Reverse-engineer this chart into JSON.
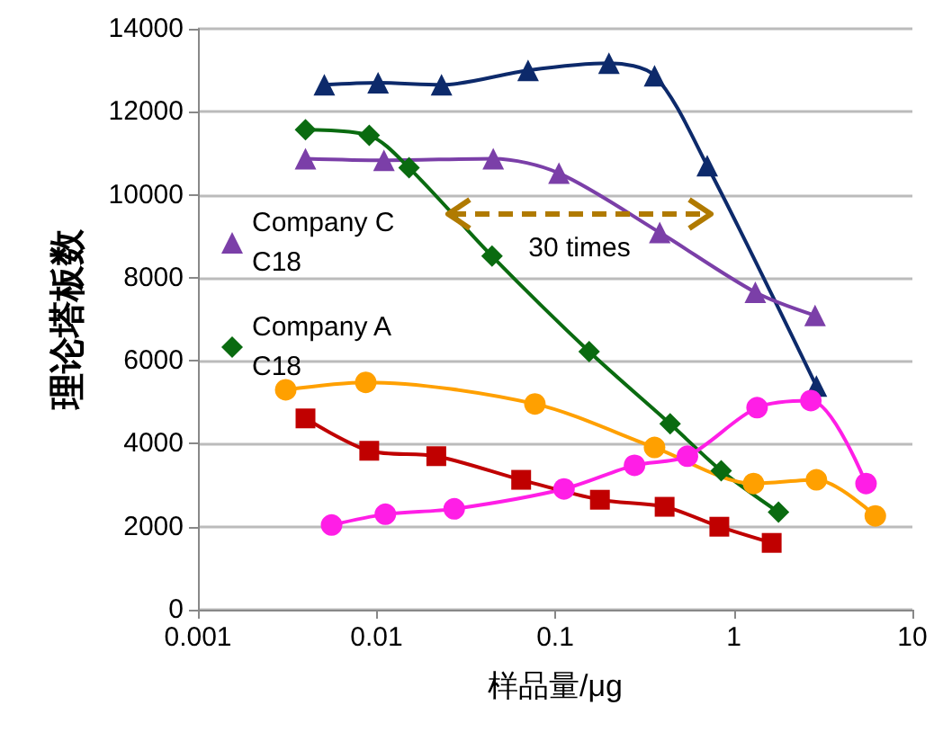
{
  "chart_data": {
    "type": "line",
    "xlabel": "样品量/μg",
    "ylabel": "理论塔板数",
    "log": "x",
    "xlim": [
      0.001,
      10
    ],
    "xticks": [
      0.001,
      0.01,
      0.1,
      1,
      10
    ],
    "ylim": [
      0,
      14000
    ],
    "yticks": [
      0,
      2000,
      4000,
      6000,
      8000,
      10000,
      12000,
      14000
    ],
    "grid": "y",
    "legend": "left",
    "line_style": "solid",
    "series": [
      {
        "color": "#0d2a6b",
        "marker": "triangle",
        "x": [
          0.0051,
          0.0102,
          0.0231,
          0.0705,
          0.2,
          0.36,
          0.71,
          2.9
        ],
        "values": [
          12650,
          12700,
          12650,
          13000,
          13170,
          12870,
          10700,
          5390
        ]
      },
      {
        "name": "Company C C18",
        "color": "#7b3fa8",
        "marker": "triangle",
        "x": [
          0.004,
          0.011,
          0.045,
          0.105,
          0.385,
          1.32,
          2.85
        ],
        "values": [
          10870,
          10830,
          10870,
          10520,
          9090,
          7650,
          7090
        ]
      },
      {
        "name": "Company A C18",
        "color": "#0a6b10",
        "marker": "diamond",
        "x": [
          0.004,
          0.0091,
          0.0152,
          0.0443,
          0.155,
          0.44,
          0.85,
          1.78
        ],
        "values": [
          11570,
          11430,
          10650,
          8520,
          6220,
          4480,
          3350,
          2350
        ]
      },
      {
        "color": "#ffa000",
        "marker": "circle",
        "x": [
          0.0031,
          0.0087,
          0.077,
          0.36,
          1.29,
          2.9,
          6.2
        ],
        "values": [
          5300,
          5480,
          4960,
          3910,
          3040,
          3130,
          2260
        ]
      },
      {
        "color": "#ff1ee6",
        "marker": "circle",
        "x": [
          0.0056,
          0.0112,
          0.0272,
          0.112,
          0.278,
          0.55,
          1.35,
          2.7,
          5.5
        ],
        "values": [
          2040,
          2300,
          2430,
          2910,
          3480,
          3700,
          4870,
          5040,
          3040
        ]
      },
      {
        "color": "#c00000",
        "marker": "square",
        "x": [
          0.004,
          0.0091,
          0.0216,
          0.0645,
          0.178,
          0.41,
          0.83,
          1.63
        ],
        "values": [
          4610,
          3830,
          3700,
          3130,
          2650,
          2480,
          2000,
          1610
        ]
      }
    ],
    "annotations": [
      "30 times"
    ]
  }
}
